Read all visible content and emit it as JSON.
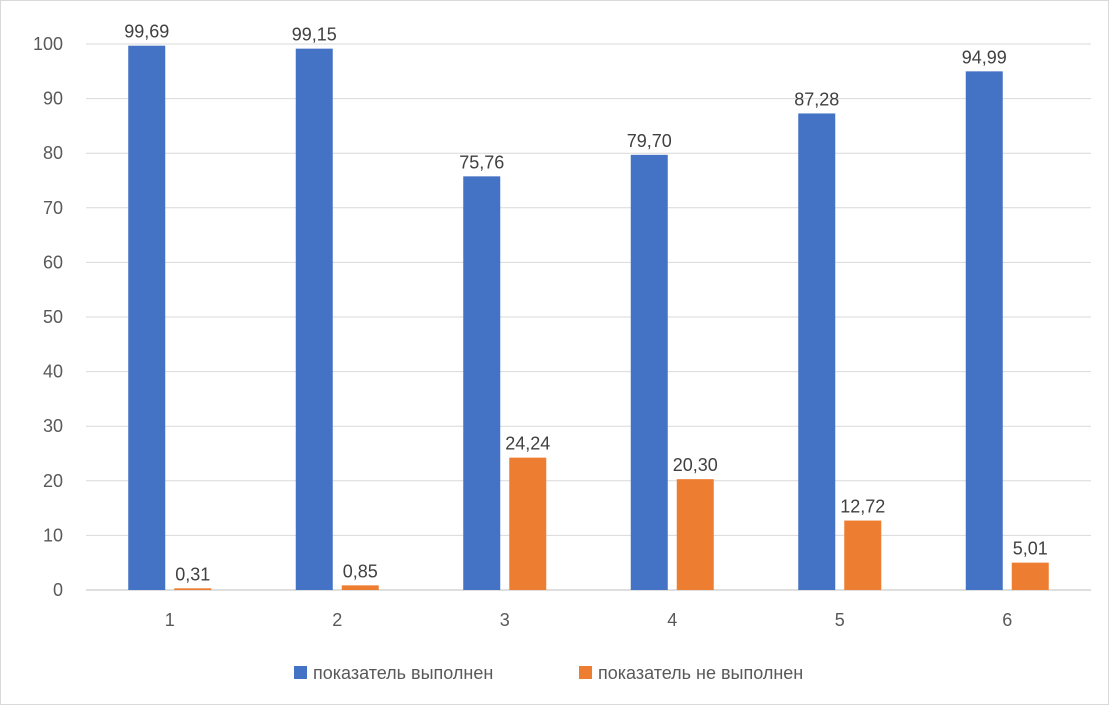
{
  "chart_data": {
    "type": "bar",
    "categories": [
      "1",
      "2",
      "3",
      "4",
      "5",
      "6"
    ],
    "series": [
      {
        "name": "показатель выполнен",
        "color": "#4472C4",
        "values": [
          99.69,
          99.15,
          75.76,
          79.7,
          87.28,
          94.99
        ],
        "labels": [
          "99,69",
          "99,15",
          "75,76",
          "79,70",
          "87,28",
          "94,99"
        ]
      },
      {
        "name": "показатель не выполнен",
        "color": "#ED7D31",
        "values": [
          0.31,
          0.85,
          24.24,
          20.3,
          12.72,
          5.01
        ],
        "labels": [
          "0,31",
          "0,85",
          "24,24",
          "20,30",
          "12,72",
          "5,01"
        ]
      }
    ],
    "title": "",
    "xlabel": "",
    "ylabel": "",
    "ylim": [
      0,
      100
    ],
    "yticks": [
      0,
      10,
      20,
      30,
      40,
      50,
      60,
      70,
      80,
      90,
      100
    ],
    "grid": true,
    "legend": "bottom"
  }
}
